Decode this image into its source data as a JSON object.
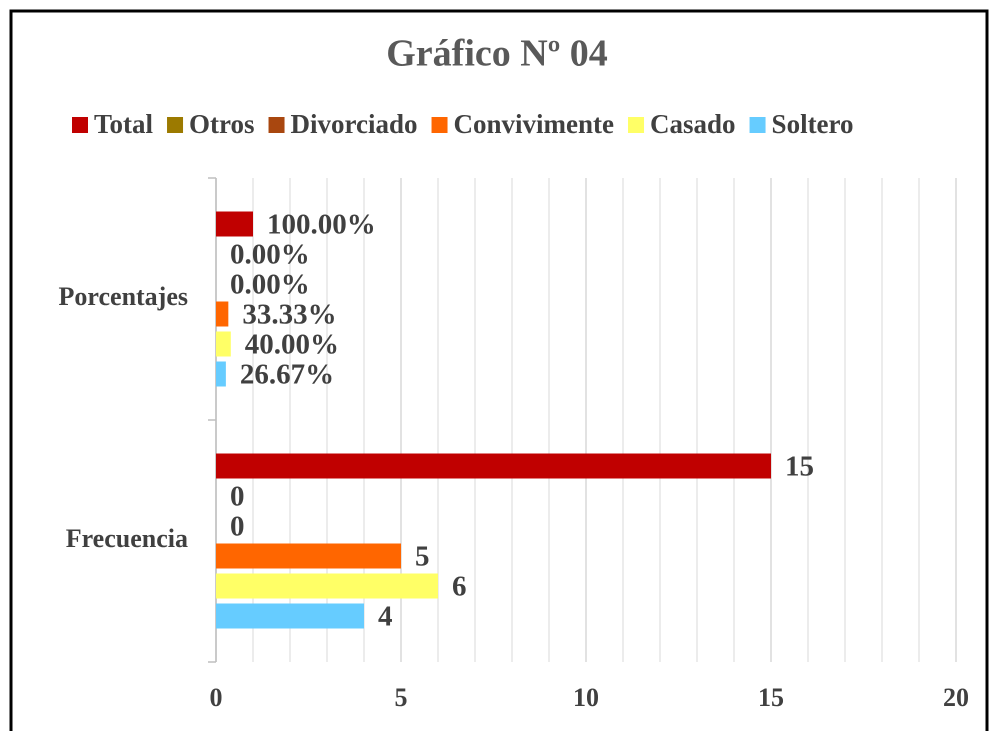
{
  "chart_data": {
    "type": "bar",
    "orientation": "horizontal",
    "title": "Gráfico Nº 04",
    "categories": [
      "Porcentajes",
      "Frecuencia"
    ],
    "series": [
      {
        "name": "Total",
        "color": "#c00000",
        "values": [
          1,
          15
        ],
        "value_labels": [
          "100.00%",
          "15"
        ]
      },
      {
        "name": "Otros",
        "color": "#9c7a00",
        "values": [
          0,
          0
        ],
        "value_labels": [
          "0.00%",
          "0"
        ]
      },
      {
        "name": "Divorciado",
        "color": "#a9470f",
        "values": [
          0,
          0
        ],
        "value_labels": [
          "0.00%",
          "0"
        ]
      },
      {
        "name": "Convivimente",
        "color": "#ff6600",
        "values": [
          0.3333,
          5
        ],
        "value_labels": [
          "33.33%",
          "5"
        ]
      },
      {
        "name": "Casado",
        "color": "#ffff66",
        "values": [
          0.4,
          6
        ],
        "value_labels": [
          "40.00%",
          "6"
        ]
      },
      {
        "name": "Soltero",
        "color": "#66ccff",
        "values": [
          0.2667,
          4
        ],
        "value_labels": [
          "26.67%",
          "4"
        ]
      }
    ],
    "xlim": [
      0,
      20
    ],
    "xticks": [
      0,
      5,
      10,
      15,
      20
    ],
    "grid": true,
    "minor_grid_step": 1,
    "legend": "top"
  }
}
